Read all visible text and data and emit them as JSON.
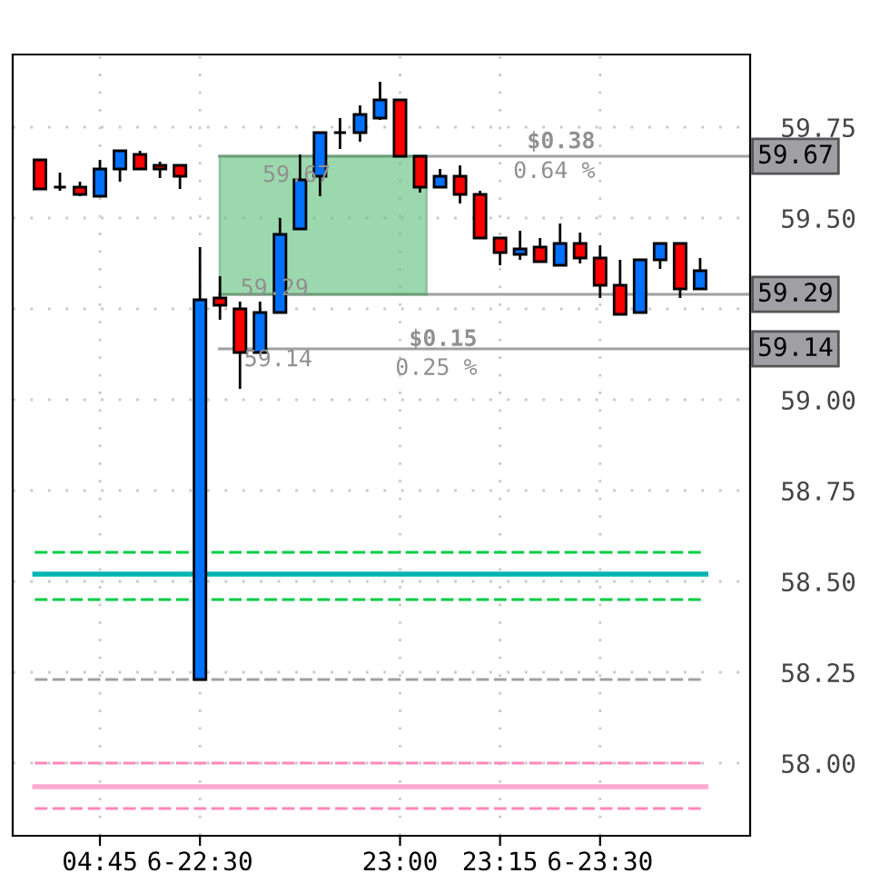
{
  "chart_data": {
    "type": "candlestick",
    "categories": [
      null,
      null,
      null,
      "04:45",
      null,
      null,
      null,
      null,
      "6-22:30",
      null,
      null,
      null,
      null,
      null,
      null,
      null,
      null,
      null,
      "23:00",
      null,
      null,
      null,
      null,
      "23:15",
      null,
      null,
      null,
      null,
      "6-23:30",
      null,
      null,
      null,
      null,
      null
    ],
    "ohlc": [
      [
        59.66,
        59.66,
        59.58,
        59.58
      ],
      [
        59.585,
        59.625,
        59.575,
        59.585
      ],
      [
        59.585,
        59.6,
        59.56,
        59.565
      ],
      [
        59.56,
        59.66,
        59.56,
        59.635
      ],
      [
        59.635,
        59.685,
        59.6,
        59.685
      ],
      [
        59.675,
        59.685,
        59.635,
        59.635
      ],
      [
        59.645,
        59.655,
        59.61,
        59.635
      ],
      [
        59.645,
        59.645,
        59.58,
        59.615
      ],
      [
        58.23,
        59.42,
        58.23,
        59.275
      ],
      [
        59.28,
        59.34,
        59.22,
        59.26
      ],
      [
        59.25,
        59.27,
        59.03,
        59.13
      ],
      [
        59.13,
        59.27,
        59.13,
        59.24
      ],
      [
        59.24,
        59.5,
        59.24,
        59.455
      ],
      [
        59.47,
        59.675,
        59.47,
        59.605
      ],
      [
        59.615,
        59.735,
        59.56,
        59.735
      ],
      [
        59.735,
        59.775,
        59.69,
        59.735
      ],
      [
        59.735,
        59.81,
        59.71,
        59.785
      ],
      [
        59.775,
        59.875,
        59.77,
        59.825
      ],
      [
        59.825,
        59.825,
        59.67,
        59.67
      ],
      [
        59.67,
        59.67,
        59.57,
        59.585
      ],
      [
        59.585,
        59.635,
        59.585,
        59.615
      ],
      [
        59.615,
        59.645,
        59.54,
        59.565
      ],
      [
        59.565,
        59.575,
        59.445,
        59.445
      ],
      [
        59.445,
        59.445,
        59.37,
        59.405
      ],
      [
        59.4,
        59.465,
        59.385,
        59.415
      ],
      [
        59.42,
        59.445,
        59.38,
        59.38
      ],
      [
        59.37,
        59.485,
        59.37,
        59.43
      ],
      [
        59.43,
        59.46,
        59.375,
        59.39
      ],
      [
        59.39,
        59.425,
        59.28,
        59.315
      ],
      [
        59.315,
        59.385,
        59.235,
        59.235
      ],
      [
        59.24,
        59.385,
        59.24,
        59.385
      ],
      [
        59.385,
        59.43,
        59.36,
        59.43
      ],
      [
        59.43,
        59.43,
        59.28,
        59.305
      ],
      [
        59.305,
        59.39,
        59.305,
        59.355
      ]
    ],
    "colors": [
      "#ff0000",
      "#000000",
      "#ff0000",
      "#0070ff",
      "#0070ff",
      "#ff0000",
      "#ff0000",
      "#ff0000",
      "#0070ff",
      "#ff0000",
      "#ff0000",
      "#0070ff",
      "#0070ff",
      "#0070ff",
      "#0070ff",
      "#000000",
      "#0070ff",
      "#0070ff",
      "#ff0000",
      "#ff0000",
      "#0070ff",
      "#ff0000",
      "#ff0000",
      "#ff0000",
      "#0070ff",
      "#ff0000",
      "#0070ff",
      "#ff0000",
      "#ff0000",
      "#ff0000",
      "#0070ff",
      "#0070ff",
      "#ff0000",
      "#0070ff"
    ],
    "ylim": [
      57.8,
      59.95
    ],
    "yticks": [
      {
        "value": 58.0,
        "label": "58.00"
      },
      58.25,
      {
        "value": 58.5,
        "label": "58.50"
      },
      58.75,
      {
        "value": 59.0,
        "label": "59.00"
      },
      {
        "value": 59.25,
        "label": null
      },
      {
        "value": 59.5,
        "label": "59.50"
      },
      59.75
    ],
    "grid": true,
    "ref_lines": [
      {
        "axis": "y",
        "value": 59.67,
        "label": "59.67",
        "color": "#a0a0a0",
        "line_style": "solid"
      },
      {
        "axis": "y",
        "value": 59.29,
        "label": "59.29",
        "color": "#a0a0a0",
        "line_style": "solid"
      },
      {
        "axis": "y",
        "value": 59.14,
        "label": "59.14",
        "color": "#a0a0a0",
        "line_style": "solid"
      },
      {
        "axis": "y",
        "value": 58.58,
        "color": "#00cc44",
        "line_style": "dashed"
      },
      {
        "axis": "y",
        "value": 58.52,
        "color": "#00b4b4",
        "line_style": "solid"
      },
      {
        "axis": "y",
        "value": 58.45,
        "color": "#00cc44",
        "line_style": "dashed"
      },
      {
        "axis": "y",
        "value": 58.23,
        "color": "#a0a0a0",
        "line_style": "dashed"
      },
      {
        "axis": "y",
        "value": 58.0,
        "color": "#ff88bb",
        "line_style": "dashed"
      },
      {
        "axis": "y",
        "value": 57.935,
        "color": "#ffaad0",
        "line_style": "solid"
      },
      {
        "axis": "y",
        "value": 57.875,
        "color": "#ff88bb",
        "line_style": "dashed"
      }
    ],
    "annotations": [
      "59.67",
      "59.29",
      "$0.38",
      "0.64 %",
      "$0.15",
      "0.25 %",
      {
        "text": "59.14",
        "y": 59.14
      }
    ]
  }
}
